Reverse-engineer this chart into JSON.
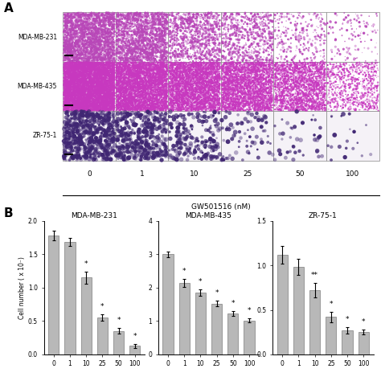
{
  "panel_A_label": "A",
  "panel_B_label": "B",
  "cell_lines": [
    "MDA-MB-231",
    "MDA-MB-435",
    "ZR-75-1"
  ],
  "concentrations": [
    0,
    1,
    10,
    25,
    50,
    100
  ],
  "conc_labels": [
    "0",
    "1",
    "10",
    "25",
    "50",
    "100"
  ],
  "xlabel": "GW501516 (nM)",
  "ylabel": "Cell number ( x 10⁻)",
  "bar_color": "#b8b8b8",
  "bar_edge_color": "#666666",
  "bar_width": 0.65,
  "chart1": {
    "title": "MDA-MB-231",
    "values": [
      1.78,
      1.69,
      1.15,
      0.55,
      0.35,
      0.13
    ],
    "errors": [
      0.07,
      0.06,
      0.09,
      0.05,
      0.04,
      0.03
    ],
    "ylim": [
      0,
      2.0
    ],
    "yticks": [
      0.0,
      0.5,
      1.0,
      1.5,
      2.0
    ],
    "sig_labels": [
      "",
      "",
      "*",
      "*",
      "*",
      "*"
    ]
  },
  "chart2": {
    "title": "MDA-MB-435",
    "values": [
      3.0,
      2.15,
      1.85,
      1.52,
      1.22,
      1.02
    ],
    "errors": [
      0.09,
      0.12,
      0.1,
      0.08,
      0.07,
      0.06
    ],
    "ylim": [
      0,
      4.0
    ],
    "yticks": [
      0.0,
      1.0,
      2.0,
      3.0,
      4.0
    ],
    "sig_labels": [
      "",
      "*",
      "*",
      "*",
      "*",
      "*"
    ]
  },
  "chart3": {
    "title": "ZR-75-1",
    "values": [
      1.12,
      0.98,
      0.72,
      0.42,
      0.27,
      0.25
    ],
    "errors": [
      0.1,
      0.09,
      0.08,
      0.06,
      0.04,
      0.03
    ],
    "ylim": [
      0,
      1.5
    ],
    "yticks": [
      0.0,
      0.5,
      1.0,
      1.5
    ],
    "sig_labels": [
      "",
      "",
      "**",
      "*",
      "*",
      "*"
    ]
  },
  "background_color": "#ffffff",
  "row_configs": [
    {
      "n_dots": [
        2500,
        1800,
        900,
        600,
        250,
        120
      ],
      "dot_color": [
        0.72,
        0.28,
        0.72
      ],
      "dot_size_range": [
        0.5,
        6
      ],
      "bg_color": [
        1.0,
        1.0,
        1.0
      ]
    },
    {
      "n_dots": [
        8000,
        5000,
        4000,
        3200,
        2200,
        800
      ],
      "dot_color": [
        0.78,
        0.22,
        0.75
      ],
      "dot_size_range": [
        0.3,
        4
      ],
      "bg_color": [
        1.0,
        1.0,
        1.0
      ]
    },
    {
      "n_dots": [
        600,
        400,
        200,
        80,
        40,
        20
      ],
      "dot_color": [
        0.25,
        0.15,
        0.45
      ],
      "dot_size_range": [
        3,
        18
      ],
      "bg_color": [
        0.96,
        0.95,
        0.97
      ]
    }
  ]
}
